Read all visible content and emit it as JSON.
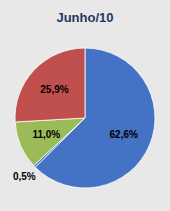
{
  "chart_data": {
    "type": "pie",
    "title": "Junho/10",
    "values": [
      62.6,
      0.5,
      11.0,
      25.9
    ],
    "value_labels": [
      "62,6%",
      "0,5%",
      "11,0%",
      "25,9%"
    ],
    "colors": [
      "#4472C4",
      "#4472C4",
      "#9BBB59",
      "#C0504D"
    ],
    "data_labels": true
  }
}
